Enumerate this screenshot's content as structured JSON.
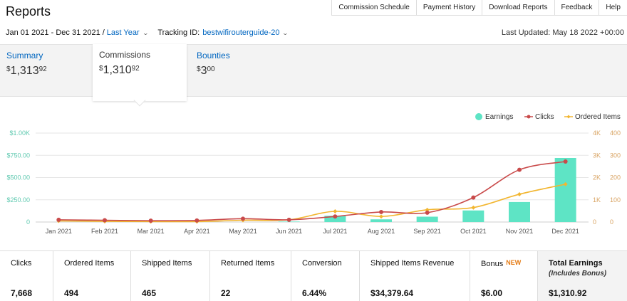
{
  "header": {
    "title": "Reports",
    "nav": [
      "Commission Schedule",
      "Payment History",
      "Download Reports",
      "Feedback",
      "Help"
    ]
  },
  "filters": {
    "date_range": "Jan 01 2021 - Dec 31 2021",
    "separator": "/",
    "period": "Last Year",
    "tracking_label": "Tracking ID:",
    "tracking_id": "bestwifirouterguide-20",
    "last_updated": "Last Updated: May 18 2022 +00:00"
  },
  "tabs": [
    {
      "label": "Summary",
      "currency": "$",
      "whole": "1,313",
      "cents": "92",
      "active": false
    },
    {
      "label": "Commissions",
      "currency": "$",
      "whole": "1,310",
      "cents": "92",
      "active": true
    },
    {
      "label": "Bounties",
      "currency": "$",
      "whole": "3",
      "cents": "00",
      "active": false
    }
  ],
  "chart_data": {
    "type": "bar+line",
    "categories": [
      "Jan 2021",
      "Feb 2021",
      "Mar 2021",
      "Apr 2021",
      "May 2021",
      "Jun 2021",
      "Jul 2021",
      "Aug 2021",
      "Sep 2021",
      "Oct 2021",
      "Nov 2021",
      "Dec 2021"
    ],
    "legend": [
      "Earnings",
      "Clicks",
      "Ordered Items"
    ],
    "legend_position": "top-right",
    "left_axis": {
      "ticks": [
        "0",
        "$250.00",
        "$500.00",
        "$750.00",
        "$1.00K"
      ],
      "range": [
        0,
        1000
      ]
    },
    "clicks_axis": {
      "ticks": [
        "0",
        "1K",
        "2K",
        "3K",
        "4K"
      ],
      "range": [
        0,
        4000
      ]
    },
    "items_axis": {
      "ticks": [
        "0",
        "100",
        "200",
        "300",
        "400"
      ],
      "range": [
        0,
        400
      ]
    },
    "series": [
      {
        "name": "Earnings",
        "kind": "bar",
        "axis": "left",
        "values": [
          0,
          0,
          0,
          0,
          0,
          5,
          70,
          30,
          60,
          130,
          225,
          720
        ]
      },
      {
        "name": "Clicks",
        "kind": "line",
        "axis": "clicks",
        "values": [
          100,
          80,
          60,
          70,
          150,
          100,
          250,
          450,
          420,
          1100,
          2350,
          2720
        ]
      },
      {
        "name": "Ordered Items",
        "kind": "line",
        "axis": "items",
        "values": [
          5,
          3,
          2,
          2,
          8,
          10,
          48,
          25,
          55,
          65,
          125,
          170
        ]
      }
    ],
    "colors": {
      "earnings": "#5ee4c5",
      "clicks": "#c94a4a",
      "items": "#f2b630",
      "grid": "#e6e6e6",
      "left_axis": "#5fc9b0",
      "right_axis": "#d9a464"
    },
    "grid": true
  },
  "stats": [
    {
      "label": "Clicks",
      "value": "7,668"
    },
    {
      "label": "Ordered Items",
      "value": "494"
    },
    {
      "label": "Shipped Items",
      "value": "465"
    },
    {
      "label": "Returned Items",
      "value": "22"
    },
    {
      "label": "Conversion",
      "value": "6.44%"
    },
    {
      "label": "Shipped Items Revenue",
      "value": "$34,379.64"
    },
    {
      "label": "Bonus",
      "badge": "NEW",
      "value": "$6.00"
    },
    {
      "label": "Total Earnings",
      "sub": "(Includes Bonus)",
      "value": "$1,310.92"
    }
  ]
}
